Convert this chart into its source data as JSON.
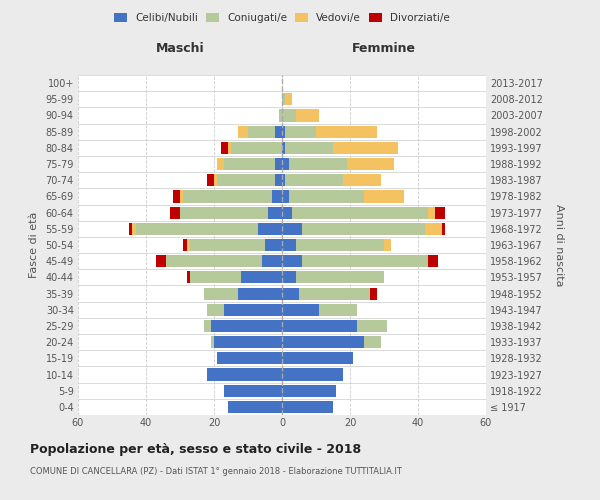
{
  "age_groups": [
    "100+",
    "95-99",
    "90-94",
    "85-89",
    "80-84",
    "75-79",
    "70-74",
    "65-69",
    "60-64",
    "55-59",
    "50-54",
    "45-49",
    "40-44",
    "35-39",
    "30-34",
    "25-29",
    "20-24",
    "15-19",
    "10-14",
    "5-9",
    "0-4"
  ],
  "birth_years": [
    "≤ 1917",
    "1918-1922",
    "1923-1927",
    "1928-1932",
    "1933-1937",
    "1938-1942",
    "1943-1947",
    "1948-1952",
    "1953-1957",
    "1958-1962",
    "1963-1967",
    "1968-1972",
    "1973-1977",
    "1978-1982",
    "1983-1987",
    "1988-1992",
    "1993-1997",
    "1998-2002",
    "2003-2007",
    "2008-2012",
    "2013-2017"
  ],
  "males": {
    "celibi": [
      0,
      0,
      0,
      2,
      0,
      2,
      2,
      3,
      4,
      7,
      5,
      6,
      12,
      13,
      17,
      21,
      20,
      19,
      22,
      17,
      16
    ],
    "coniugati": [
      0,
      0,
      1,
      8,
      15,
      15,
      17,
      26,
      26,
      36,
      22,
      28,
      15,
      10,
      5,
      2,
      1,
      0,
      0,
      0,
      0
    ],
    "vedovi": [
      0,
      0,
      0,
      3,
      1,
      2,
      1,
      1,
      0,
      1,
      1,
      0,
      0,
      0,
      0,
      0,
      0,
      0,
      0,
      0,
      0
    ],
    "divorziati": [
      0,
      0,
      0,
      0,
      2,
      0,
      2,
      2,
      3,
      1,
      1,
      3,
      1,
      0,
      0,
      0,
      0,
      0,
      0,
      0,
      0
    ]
  },
  "females": {
    "nubili": [
      0,
      0,
      0,
      1,
      1,
      2,
      1,
      2,
      3,
      6,
      4,
      6,
      4,
      5,
      11,
      22,
      24,
      21,
      18,
      16,
      15
    ],
    "coniugate": [
      0,
      1,
      4,
      9,
      14,
      17,
      17,
      22,
      40,
      36,
      26,
      37,
      26,
      21,
      11,
      9,
      5,
      0,
      0,
      0,
      0
    ],
    "vedove": [
      0,
      2,
      7,
      18,
      19,
      14,
      11,
      12,
      2,
      5,
      2,
      0,
      0,
      0,
      0,
      0,
      0,
      0,
      0,
      0,
      0
    ],
    "divorziate": [
      0,
      0,
      0,
      0,
      0,
      0,
      0,
      0,
      3,
      1,
      0,
      3,
      0,
      2,
      0,
      0,
      0,
      0,
      0,
      0,
      0
    ]
  },
  "colors": {
    "celibi": "#4472c4",
    "coniugati": "#b5c99a",
    "vedovi": "#f5c262",
    "divorziati": "#c00000"
  },
  "xlim": 60,
  "title": "Popolazione per età, sesso e stato civile - 2018",
  "subtitle": "COMUNE DI CANCELLARA (PZ) - Dati ISTAT 1° gennaio 2018 - Elaborazione TUTTITALIA.IT",
  "ylabel": "Fasce di età",
  "ylabel_right": "Anni di nascita",
  "xlabel_maschi": "Maschi",
  "xlabel_femmine": "Femmine",
  "legend_labels": [
    "Celibi/Nubili",
    "Coniugati/e",
    "Vedovi/e",
    "Divorziati/e"
  ],
  "bg_color": "#ebebeb",
  "plot_bg_color": "#ffffff"
}
